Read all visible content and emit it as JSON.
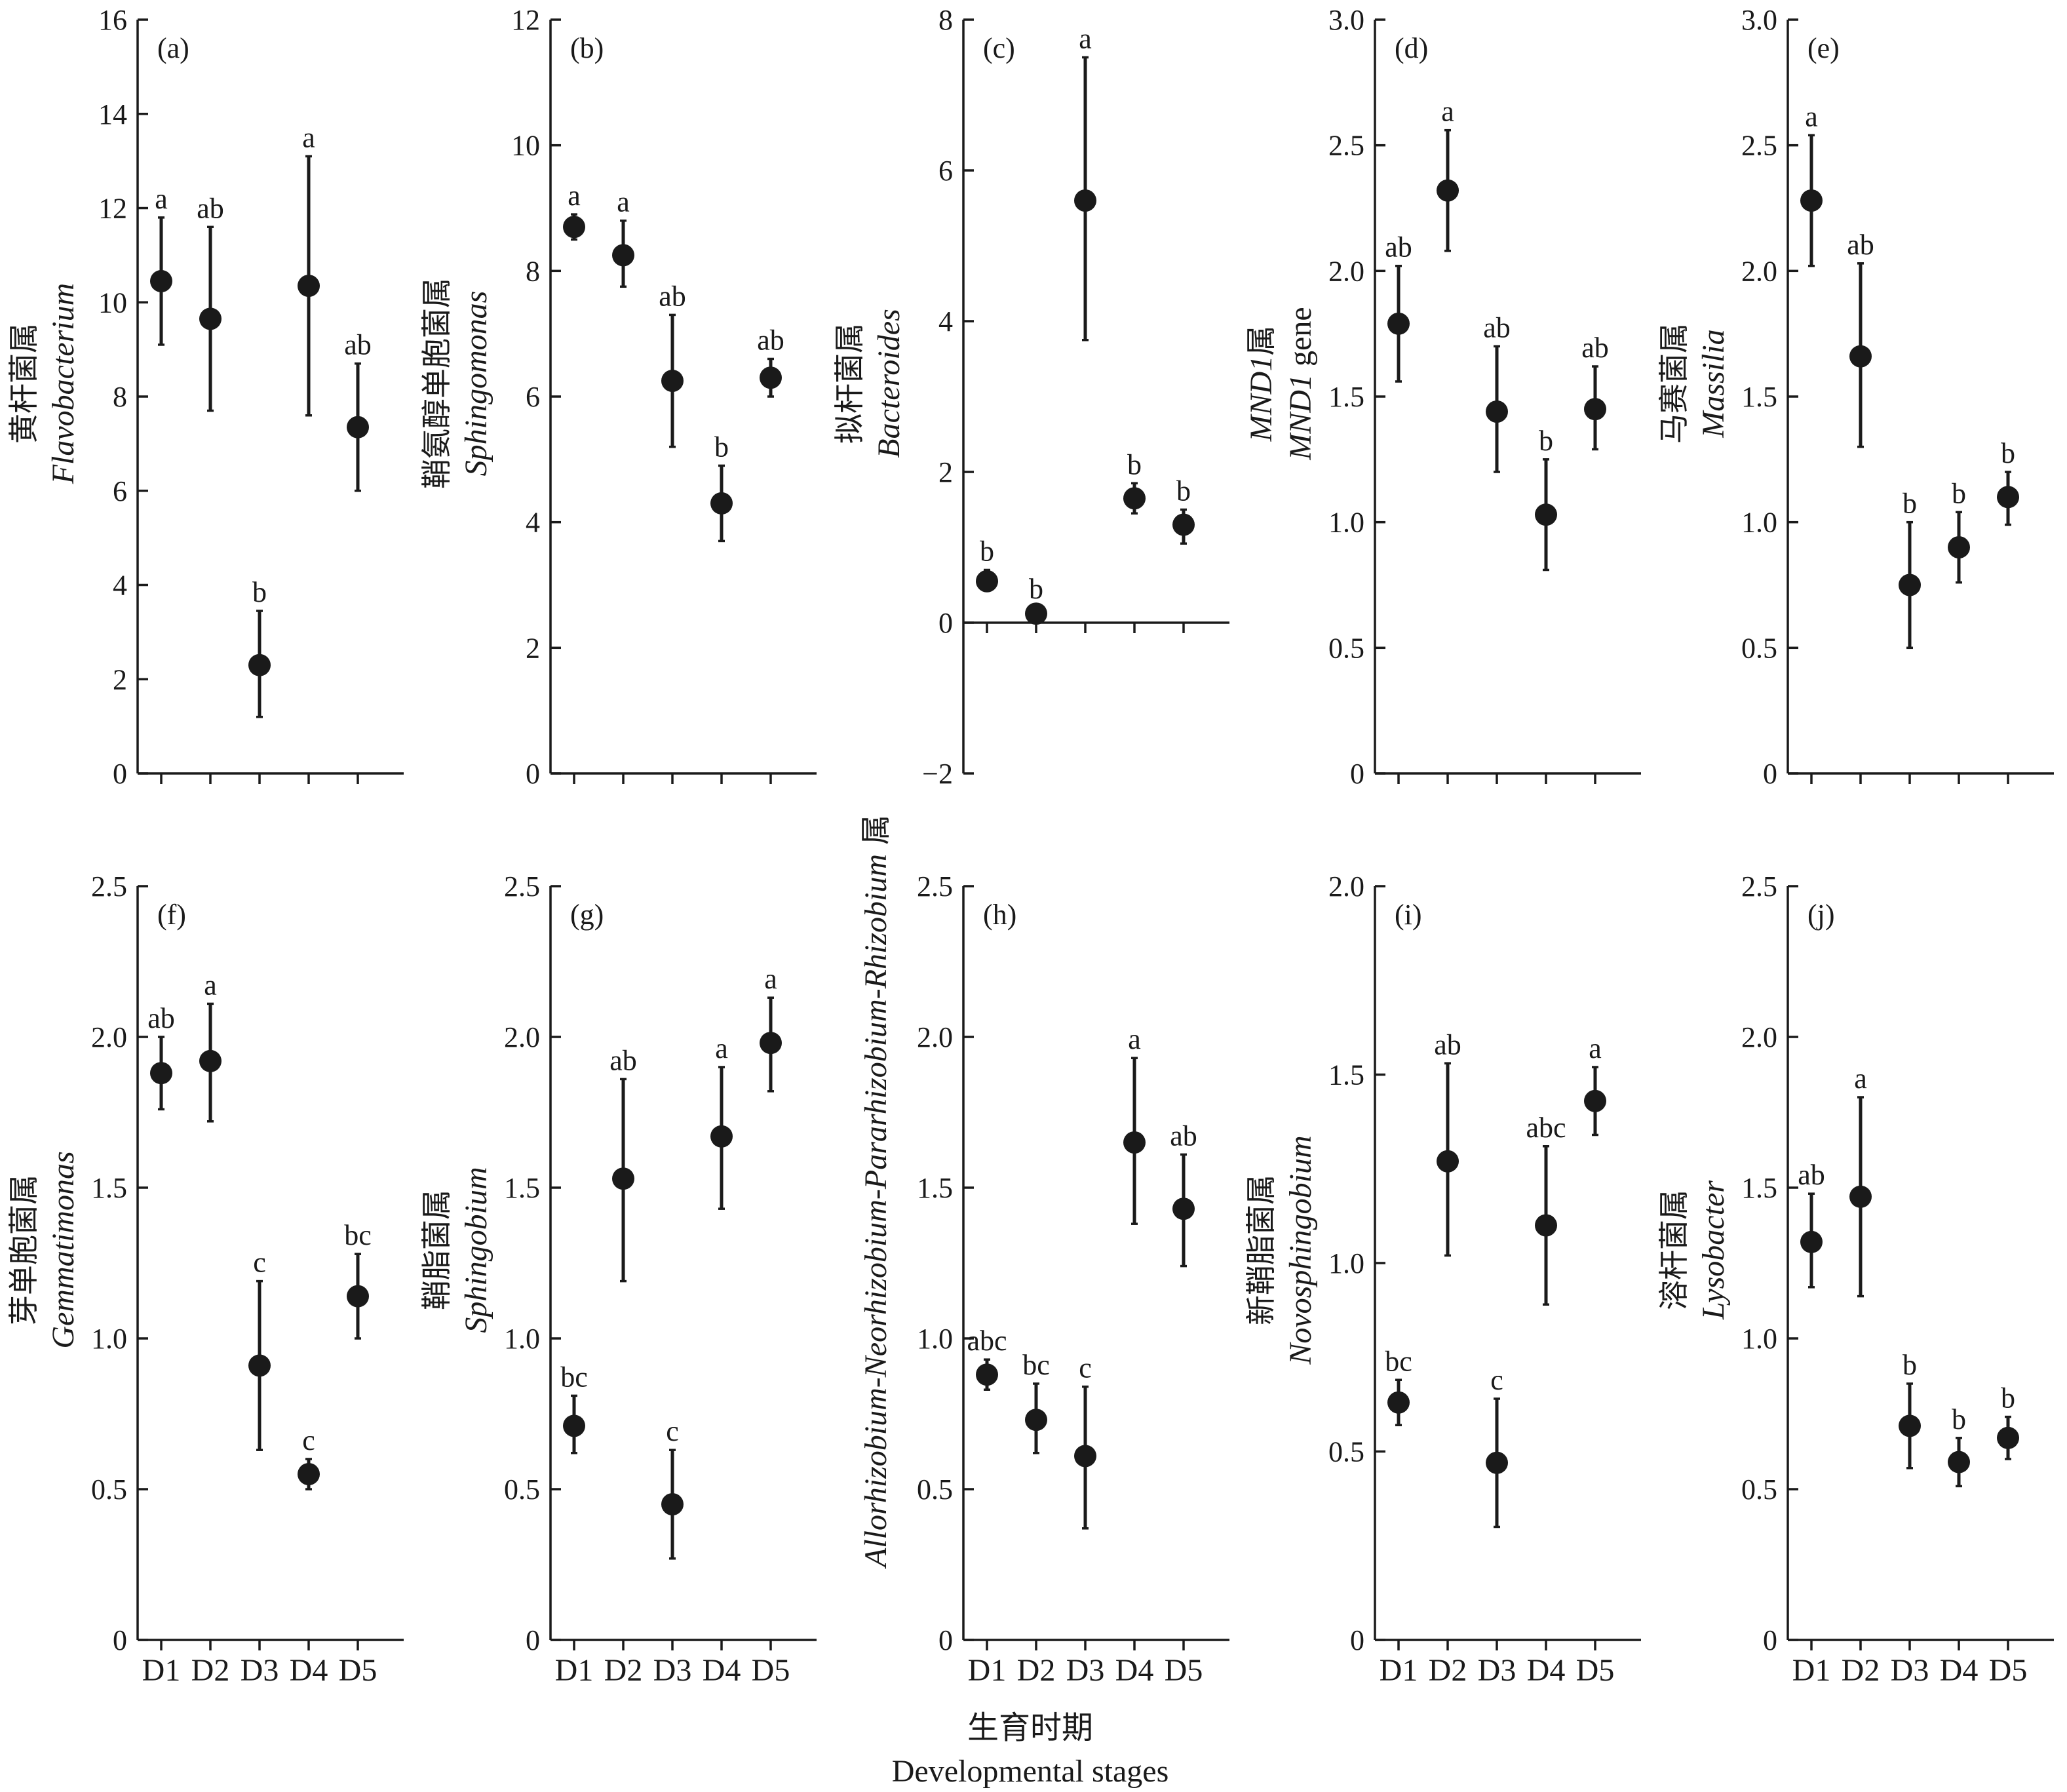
{
  "figure": {
    "xlabel_cn": "生育时期",
    "xlabel_en": "Developmental stages"
  },
  "chart_data": [
    {
      "type": "scatter",
      "panel": "(a)",
      "ylabel_cn": "黄杆菌属",
      "ylabel_en": "Flavobacterium",
      "categories": [
        "D1",
        "D2",
        "D3",
        "D4",
        "D5"
      ],
      "ylim": [
        0,
        16
      ],
      "yticks": [
        0,
        2,
        4,
        6,
        8,
        10,
        12,
        14,
        16
      ],
      "ytick_labels": [
        "0",
        "2",
        "4",
        "6",
        "8",
        "10",
        "12",
        "14",
        "16"
      ],
      "values": [
        10.45,
        9.65,
        2.3,
        10.35,
        7.35
      ],
      "err_low": [
        9.1,
        7.7,
        1.2,
        7.6,
        6.0
      ],
      "err_high": [
        11.8,
        11.6,
        3.45,
        13.1,
        8.7
      ],
      "significance": [
        "a",
        "ab",
        "b",
        "a",
        "ab"
      ]
    },
    {
      "type": "scatter",
      "panel": "(b)",
      "ylabel_cn": "鞘氨醇单胞菌属",
      "ylabel_en": "Sphingomonas",
      "categories": [
        "D1",
        "D2",
        "D3",
        "D4",
        "D5"
      ],
      "ylim": [
        0,
        12
      ],
      "yticks": [
        0,
        2,
        4,
        6,
        8,
        10,
        12
      ],
      "ytick_labels": [
        "0",
        "2",
        "4",
        "6",
        "8",
        "10",
        "12"
      ],
      "values": [
        8.7,
        8.25,
        6.25,
        4.3,
        6.3
      ],
      "err_low": [
        8.5,
        7.75,
        5.2,
        3.7,
        6.0
      ],
      "err_high": [
        8.9,
        8.8,
        7.3,
        4.9,
        6.6
      ],
      "significance": [
        "a",
        "a",
        "ab",
        "b",
        "ab"
      ]
    },
    {
      "type": "scatter",
      "panel": "(c)",
      "ylabel_cn": "拟杆菌属",
      "ylabel_en": "Bacteroides",
      "categories": [
        "D1",
        "D2",
        "D3",
        "D4",
        "D5"
      ],
      "ylim": [
        -2,
        8
      ],
      "yticks": [
        -2,
        0,
        2,
        4,
        6,
        8
      ],
      "ytick_labels": [
        "−2",
        "0",
        "2",
        "4",
        "6",
        "8"
      ],
      "values": [
        0.55,
        0.12,
        5.6,
        1.65,
        1.3
      ],
      "err_low": [
        0.45,
        0.05,
        3.75,
        1.45,
        1.05
      ],
      "err_high": [
        0.7,
        0.2,
        7.5,
        1.85,
        1.5
      ],
      "significance": [
        "b",
        "b",
        "a",
        "b",
        "b"
      ]
    },
    {
      "type": "scatter",
      "panel": "(d)",
      "ylabel_cn": "MND1属",
      "ylabel_en": "MND1 gene",
      "categories": [
        "D1",
        "D2",
        "D3",
        "D4",
        "D5"
      ],
      "ylim": [
        0,
        3
      ],
      "yticks": [
        0,
        0.5,
        1.0,
        1.5,
        2.0,
        2.5,
        3.0
      ],
      "ytick_labels": [
        "0",
        "0.5",
        "1.0",
        "1.5",
        "2.0",
        "2.5",
        "3.0"
      ],
      "values": [
        1.79,
        2.32,
        1.44,
        1.03,
        1.45
      ],
      "err_low": [
        1.56,
        2.08,
        1.2,
        0.81,
        1.29
      ],
      "err_high": [
        2.02,
        2.56,
        1.7,
        1.25,
        1.62
      ],
      "significance": [
        "ab",
        "a",
        "ab",
        "b",
        "ab"
      ]
    },
    {
      "type": "scatter",
      "panel": "(e)",
      "ylabel_cn": "马赛菌属",
      "ylabel_en": "Massilia",
      "categories": [
        "D1",
        "D2",
        "D3",
        "D4",
        "D5"
      ],
      "ylim": [
        0,
        3
      ],
      "yticks": [
        0,
        0.5,
        1.0,
        1.5,
        2.0,
        2.5,
        3.0
      ],
      "ytick_labels": [
        "0",
        "0.5",
        "1.0",
        "1.5",
        "2.0",
        "2.5",
        "3.0"
      ],
      "values": [
        2.28,
        1.66,
        0.75,
        0.9,
        1.1
      ],
      "err_low": [
        2.02,
        1.3,
        0.5,
        0.76,
        0.99
      ],
      "err_high": [
        2.54,
        2.03,
        1.0,
        1.04,
        1.2
      ],
      "significance": [
        "a",
        "ab",
        "b",
        "b",
        "b"
      ]
    },
    {
      "type": "scatter",
      "panel": "(f)",
      "ylabel_cn": "芽单胞菌属",
      "ylabel_en": "Gemmatimonas",
      "categories": [
        "D1",
        "D2",
        "D3",
        "D4",
        "D5"
      ],
      "ylim": [
        0,
        2.5
      ],
      "yticks": [
        0,
        0.5,
        1.0,
        1.5,
        2.0,
        2.5
      ],
      "ytick_labels": [
        "0",
        "0.5",
        "1.0",
        "1.5",
        "2.0",
        "2.5"
      ],
      "values": [
        1.88,
        1.92,
        0.91,
        0.55,
        1.14
      ],
      "err_low": [
        1.76,
        1.72,
        0.63,
        0.5,
        1.0
      ],
      "err_high": [
        2.0,
        2.11,
        1.19,
        0.6,
        1.28
      ],
      "significance": [
        "ab",
        "a",
        "c",
        "c",
        "bc"
      ]
    },
    {
      "type": "scatter",
      "panel": "(g)",
      "ylabel_cn": "鞘脂菌属",
      "ylabel_en": "Sphingobium",
      "categories": [
        "D1",
        "D2",
        "D3",
        "D4",
        "D5"
      ],
      "ylim": [
        0,
        2.5
      ],
      "yticks": [
        0,
        0.5,
        1.0,
        1.5,
        2.0,
        2.5
      ],
      "ytick_labels": [
        "0",
        "0.5",
        "1.0",
        "1.5",
        "2.0",
        "2.5"
      ],
      "values": [
        0.71,
        1.53,
        0.45,
        1.67,
        1.98
      ],
      "err_low": [
        0.62,
        1.19,
        0.27,
        1.43,
        1.82
      ],
      "err_high": [
        0.81,
        1.86,
        0.63,
        1.9,
        2.13
      ],
      "significance": [
        "bc",
        "ab",
        "c",
        "a",
        "a"
      ]
    },
    {
      "type": "scatter",
      "panel": "(h)",
      "ylabel_cn": "属",
      "ylabel_en": "Allorhizobium-Neorhizobium-Pararhizobium-Rhizobium",
      "categories": [
        "D1",
        "D2",
        "D3",
        "D4",
        "D5"
      ],
      "ylim": [
        0,
        2.5
      ],
      "yticks": [
        0,
        0.5,
        1.0,
        1.5,
        2.0,
        2.5
      ],
      "ytick_labels": [
        "0",
        "0.5",
        "1.0",
        "1.5",
        "2.0",
        "2.5"
      ],
      "values": [
        0.88,
        0.73,
        0.61,
        1.65,
        1.43
      ],
      "err_low": [
        0.83,
        0.62,
        0.37,
        1.38,
        1.24
      ],
      "err_high": [
        0.93,
        0.85,
        0.84,
        1.93,
        1.61
      ],
      "significance": [
        "abc",
        "bc",
        "c",
        "a",
        "ab"
      ]
    },
    {
      "type": "scatter",
      "panel": "(i)",
      "ylabel_cn": "新鞘脂菌属",
      "ylabel_en": "Novosphingobium",
      "categories": [
        "D1",
        "D2",
        "D3",
        "D4",
        "D5"
      ],
      "ylim": [
        0,
        2.0
      ],
      "yticks": [
        0,
        0.5,
        1.0,
        1.5,
        2.0
      ],
      "ytick_labels": [
        "0",
        "0.5",
        "1.0",
        "1.5",
        "2.0"
      ],
      "values": [
        0.63,
        1.27,
        0.47,
        1.1,
        1.43
      ],
      "err_low": [
        0.57,
        1.02,
        0.3,
        0.89,
        1.34
      ],
      "err_high": [
        0.69,
        1.53,
        0.64,
        1.31,
        1.52
      ],
      "significance": [
        "bc",
        "ab",
        "c",
        "abc",
        "a"
      ]
    },
    {
      "type": "scatter",
      "panel": "(j)",
      "ylabel_cn": "溶杆菌属",
      "ylabel_en": "Lysobacter",
      "categories": [
        "D1",
        "D2",
        "D3",
        "D4",
        "D5"
      ],
      "ylim": [
        0,
        2.5
      ],
      "yticks": [
        0,
        0.5,
        1.0,
        1.5,
        2.0,
        2.5
      ],
      "ytick_labels": [
        "0",
        "0.5",
        "1.0",
        "1.5",
        "2.0",
        "2.5"
      ],
      "values": [
        1.32,
        1.47,
        0.71,
        0.59,
        0.67
      ],
      "err_low": [
        1.17,
        1.14,
        0.57,
        0.51,
        0.6
      ],
      "err_high": [
        1.48,
        1.8,
        0.85,
        0.67,
        0.74
      ],
      "significance": [
        "ab",
        "a",
        "b",
        "b",
        "b"
      ]
    }
  ]
}
